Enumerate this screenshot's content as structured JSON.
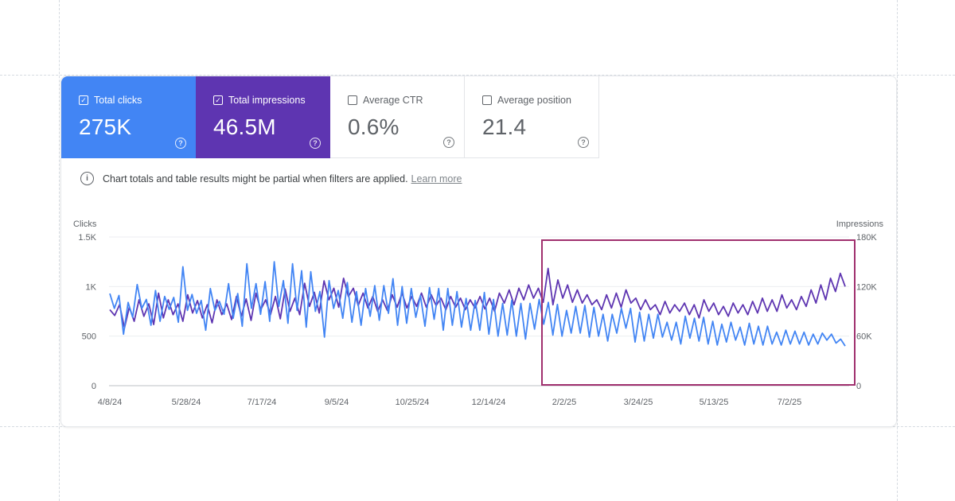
{
  "cards": [
    {
      "label": "Total clicks",
      "value": "275K",
      "checked": true,
      "color": "#4285f4"
    },
    {
      "label": "Total impressions",
      "value": "46.5M",
      "checked": true,
      "color": "#5e35b1"
    },
    {
      "label": "Average CTR",
      "value": "0.6%",
      "checked": false
    },
    {
      "label": "Average position",
      "value": "21.4",
      "checked": false
    }
  ],
  "notice": {
    "text": "Chart totals and table results might be partial when filters are applied.",
    "link": "Learn more",
    "icon": "info-icon"
  },
  "chart_data": {
    "type": "line",
    "left_axis": {
      "label": "Clicks",
      "ticks": [
        "1.5K",
        "1K",
        "500",
        "0"
      ],
      "range": [
        0,
        1500
      ]
    },
    "right_axis": {
      "label": "Impressions",
      "ticks": [
        "180K",
        "120K",
        "60K",
        "0"
      ],
      "range": [
        0,
        180000
      ]
    },
    "x_ticks": [
      "4/8/24",
      "5/28/24",
      "7/17/24",
      "9/5/24",
      "10/25/24",
      "12/14/24",
      "2/2/25",
      "3/24/25",
      "5/13/25",
      "7/2/25"
    ],
    "grid": true,
    "series": [
      {
        "axis": "left",
        "color": "#4285f4",
        "values": [
          930,
          780,
          910,
          520,
          840,
          690,
          1020,
          780,
          870,
          610,
          960,
          650,
          900,
          770,
          890,
          640,
          1200,
          760,
          920,
          730,
          860,
          560,
          980,
          760,
          850,
          720,
          1030,
          680,
          930,
          600,
          1230,
          780,
          1030,
          720,
          1050,
          650,
          1250,
          800,
          1060,
          630,
          1230,
          760,
          1160,
          590,
          1150,
          750,
          950,
          490,
          1060,
          780,
          960,
          680,
          1040,
          640,
          950,
          610,
          980,
          700,
          1010,
          660,
          1010,
          730,
          1080,
          610,
          1000,
          630,
          980,
          690,
          910,
          600,
          990,
          670,
          980,
          560,
          980,
          610,
          950,
          590,
          880,
          560,
          860,
          560,
          940,
          520,
          870,
          500,
          830,
          510,
          860,
          500,
          830,
          470,
          830,
          570,
          870,
          620,
          840,
          510,
          820,
          500,
          760,
          530,
          800,
          530,
          810,
          490,
          790,
          500,
          720,
          450,
          720,
          530,
          780,
          580,
          780,
          440,
          740,
          450,
          720,
          480,
          720,
          490,
          640,
          460,
          640,
          420,
          700,
          480,
          680,
          450,
          690,
          420,
          650,
          410,
          620,
          440,
          640,
          460,
          590,
          410,
          630,
          420,
          600,
          410,
          600,
          420,
          540,
          410,
          560,
          420,
          550,
          420,
          540,
          410,
          520,
          420,
          530,
          460,
          520,
          430,
          470,
          400
        ]
      },
      {
        "axis": "right",
        "color": "#5e35b1",
        "values": [
          92000,
          85000,
          98000,
          70000,
          95000,
          78000,
          104000,
          84000,
          99000,
          74000,
          112000,
          82000,
          104000,
          86000,
          99000,
          78000,
          110000,
          88000,
          103000,
          82000,
          98000,
          76000,
          104000,
          86000,
          99000,
          80000,
          108000,
          84000,
          105000,
          79000,
          112000,
          92000,
          104000,
          86000,
          108000,
          81000,
          117000,
          90000,
          106000,
          86000,
          124000,
          96000,
          113000,
          88000,
          127000,
          104000,
          118000,
          95000,
          130000,
          108000,
          118000,
          97000,
          112000,
          94000,
          108000,
          90000,
          104000,
          91000,
          110000,
          95000,
          112000,
          94000,
          108000,
          96000,
          112000,
          95000,
          110000,
          97000,
          106000,
          92000,
          108000,
          95000,
          106000,
          92000,
          104000,
          94000,
          108000,
          93000,
          106000,
          90000,
          112000,
          100000,
          116000,
          98000,
          118000,
          104000,
          122000,
          106000,
          118000,
          101000,
          142000,
          98000,
          128000,
          106000,
          122000,
          101000,
          116000,
          100000,
          110000,
          98000,
          104000,
          92000,
          110000,
          94000,
          112000,
          95000,
          116000,
          100000,
          106000,
          92000,
          104000,
          92000,
          98000,
          86000,
          102000,
          88000,
          98000,
          90000,
          100000,
          86000,
          98000,
          82000,
          104000,
          90000,
          100000,
          86000,
          96000,
          84000,
          100000,
          88000,
          98000,
          86000,
          102000,
          88000,
          106000,
          90000,
          104000,
          90000,
          110000,
          94000,
          104000,
          92000,
          108000,
          96000,
          116000,
          100000,
          122000,
          104000,
          130000,
          114000,
          136000,
          120000
        ]
      }
    ],
    "annotation": {
      "type": "highlight-box",
      "color": "#a0306e",
      "x_start": "1/24/25",
      "x_end": "8/8/25"
    }
  }
}
